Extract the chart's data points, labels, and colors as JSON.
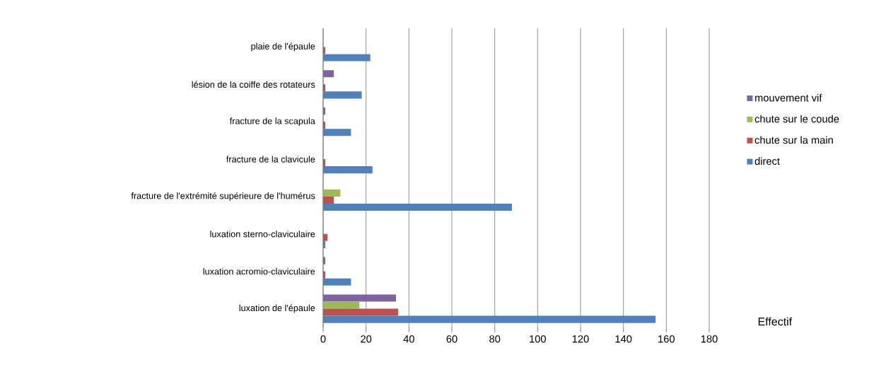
{
  "chart_data": {
    "type": "bar",
    "orientation": "horizontal",
    "xlabel": "Effectif",
    "categories": [
      "plaie de l'épaule",
      "lésion de la coiffe des rotateurs",
      "fracture de la scapula",
      "fracture de la clavicule",
      "fracture de l'extrémité supérieure de l'humérus",
      "luxation sterno-claviculaire",
      "luxation acromio-claviculaire",
      "luxation de l'épaule"
    ],
    "series": [
      {
        "name": "mouvement vif",
        "color": "#8064a2",
        "values": [
          null,
          5,
          1,
          null,
          null,
          null,
          1,
          34
        ]
      },
      {
        "name": "chute sur le coude",
        "color": "#9bbb59",
        "values": [
          null,
          null,
          null,
          null,
          8,
          null,
          null,
          17
        ]
      },
      {
        "name": "chute sur la main",
        "color": "#c0504d",
        "values": [
          1,
          1,
          1,
          1,
          5,
          2,
          1,
          35
        ]
      },
      {
        "name": "direct",
        "color": "#4f81bd",
        "values": [
          22,
          18,
          13,
          23,
          88,
          1,
          13,
          155
        ]
      }
    ],
    "xlim": [
      0,
      180
    ],
    "xticks": [
      0,
      20,
      40,
      60,
      80,
      100,
      120,
      140,
      160,
      180
    ],
    "grid": "x",
    "legend": "right"
  }
}
